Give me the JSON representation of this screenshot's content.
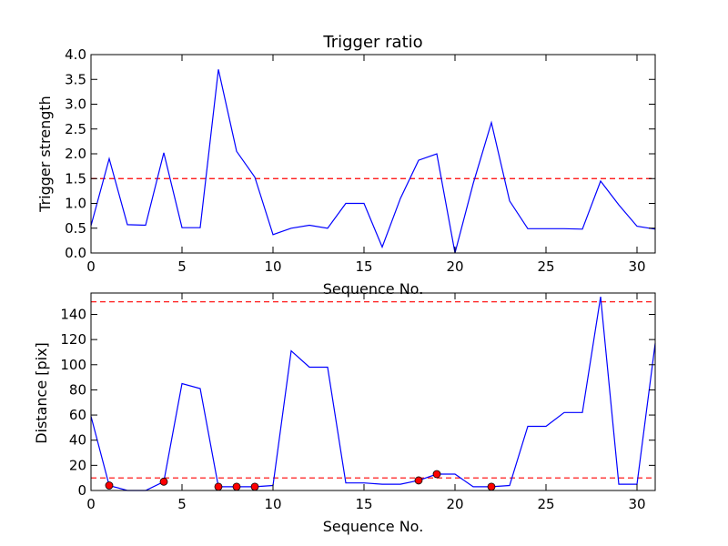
{
  "chart_data": [
    {
      "type": "line",
      "title": "Trigger ratio",
      "xlabel": "Sequence No.",
      "ylabel": "Trigger strength",
      "xlim": [
        0,
        31
      ],
      "ylim": [
        0,
        4.0
      ],
      "xticks": [
        0,
        5,
        10,
        15,
        20,
        25,
        30
      ],
      "yticks": [
        0.0,
        0.5,
        1.0,
        1.5,
        2.0,
        2.5,
        3.0,
        3.5,
        4.0
      ],
      "ytick_labels": [
        "0.0",
        "0.5",
        "1.0",
        "1.5",
        "2.0",
        "2.5",
        "3.0",
        "3.5",
        "4.0"
      ],
      "grid": false,
      "series": [
        {
          "color": "#0000ff",
          "x": [
            0,
            1,
            2,
            3,
            4,
            5,
            6,
            7,
            8,
            9,
            10,
            11,
            12,
            13,
            14,
            15,
            16,
            17,
            18,
            19,
            20,
            21,
            22,
            23,
            24,
            25,
            26,
            27,
            28,
            29,
            30,
            31
          ],
          "values": [
            0.55,
            1.9,
            0.57,
            0.56,
            2.02,
            0.51,
            0.51,
            3.7,
            2.05,
            1.53,
            0.37,
            0.5,
            0.56,
            0.5,
            1.0,
            1.0,
            0.12,
            1.1,
            1.87,
            2.0,
            0.0,
            1.4,
            2.63,
            1.05,
            0.49,
            0.49,
            0.49,
            0.48,
            1.45,
            0.97,
            0.54,
            0.48
          ]
        }
      ],
      "thresholds": [
        {
          "y": 1.5,
          "color": "#ff0000",
          "style": "dashed"
        }
      ]
    },
    {
      "type": "line",
      "title": "",
      "xlabel": "Sequence No.",
      "ylabel": "Distance [pix]",
      "xlim": [
        0,
        31
      ],
      "ylim": [
        0,
        157
      ],
      "xticks": [
        0,
        5,
        10,
        15,
        20,
        25,
        30
      ],
      "yticks": [
        0,
        20,
        40,
        60,
        80,
        100,
        120,
        140
      ],
      "ytick_labels": [
        "0",
        "20",
        "40",
        "60",
        "80",
        "100",
        "120",
        "140"
      ],
      "grid": false,
      "series": [
        {
          "color": "#0000ff",
          "x": [
            0,
            1,
            2,
            3,
            4,
            5,
            6,
            7,
            8,
            9,
            10,
            11,
            12,
            13,
            14,
            15,
            16,
            17,
            18,
            19,
            20,
            21,
            22,
            23,
            24,
            25,
            26,
            27,
            28,
            29,
            30,
            31
          ],
          "values": [
            59,
            4,
            0,
            0,
            7,
            85,
            81,
            3,
            3,
            3,
            4,
            111,
            98,
            98,
            6,
            6,
            5,
            5,
            8,
            13,
            13,
            3,
            3,
            4,
            51,
            51,
            62,
            62,
            154,
            5,
            5,
            117
          ]
        }
      ],
      "markers": {
        "color": "#ff0000",
        "x": [
          1,
          4,
          7,
          8,
          9,
          18,
          19,
          22
        ],
        "values": [
          4,
          7,
          3,
          3,
          3,
          8,
          13,
          3
        ]
      },
      "thresholds": [
        {
          "y": 150,
          "color": "#ff0000",
          "style": "dashed"
        },
        {
          "y": 10,
          "color": "#ff0000",
          "style": "dashed"
        }
      ]
    }
  ]
}
